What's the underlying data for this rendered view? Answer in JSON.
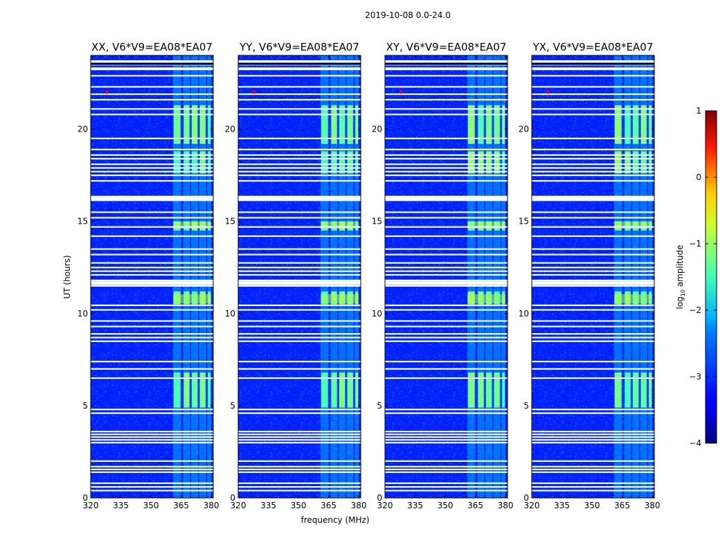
{
  "chart_data": {
    "type": "heatmap",
    "suptitle": "2019-10-08 0.0-24.0",
    "xlabel": "frequency (MHz)",
    "ylabel": "UT (hours)",
    "xlim": [
      320,
      381
    ],
    "ylim": [
      0,
      24
    ],
    "xticks": [
      320,
      335,
      350,
      365,
      380
    ],
    "yticks": [
      0,
      5,
      10,
      15,
      20
    ],
    "colorbar": {
      "label": "log10 amplitude",
      "label_main": "log",
      "label_sub": "10",
      "label_rest": " amplitude",
      "range": [
        -4,
        1
      ],
      "ticks": [
        -4,
        -3,
        -2,
        -1,
        0,
        1
      ],
      "tick_labels": [
        "−4",
        "−3",
        "−2",
        "−1",
        "0",
        "1"
      ],
      "colormap": "jet"
    },
    "panels": [
      {
        "title": "XX, V6*V9=EA08*EA07",
        "polarization": "XX"
      },
      {
        "title": "YY, V6*V9=EA08*EA07",
        "polarization": "YY"
      },
      {
        "title": "XY, V6*V9=EA08*EA07",
        "polarization": "XY"
      },
      {
        "title": "YX, V6*V9=EA08*EA07",
        "polarization": "YX"
      }
    ],
    "background_log_amplitude": -3.2,
    "bright_band_MHz": [
      361,
      380
    ],
    "rfi_bright_intervals_hours": [
      [
        4.9,
        6.8
      ],
      [
        10.5,
        11.2
      ],
      [
        14.5,
        15.0
      ],
      [
        17.6,
        18.8
      ],
      [
        19.2,
        21.3
      ]
    ],
    "rfi_bright_level": -1.6,
    "flagged_rows_hours": [
      0.4,
      0.6,
      0.8,
      1.4,
      1.55,
      1.7,
      2.0,
      3.0,
      3.15,
      3.3,
      3.45,
      3.6,
      4.6,
      4.8,
      6.5,
      7.0,
      7.4,
      8.5,
      8.7,
      8.9,
      9.3,
      9.6,
      10.2,
      10.45,
      11.5,
      11.6,
      11.8,
      12.1,
      12.3,
      12.5,
      12.75,
      13.2,
      13.5,
      14.2,
      14.7,
      15.2,
      15.5,
      16.3,
      16.35,
      17.2,
      17.5,
      17.7,
      17.9,
      18.1,
      18.4,
      18.6,
      18.9,
      19.5,
      20.8,
      21.1,
      21.6,
      21.9,
      22.3,
      22.9,
      23.5,
      23.65,
      23.7
    ]
  }
}
